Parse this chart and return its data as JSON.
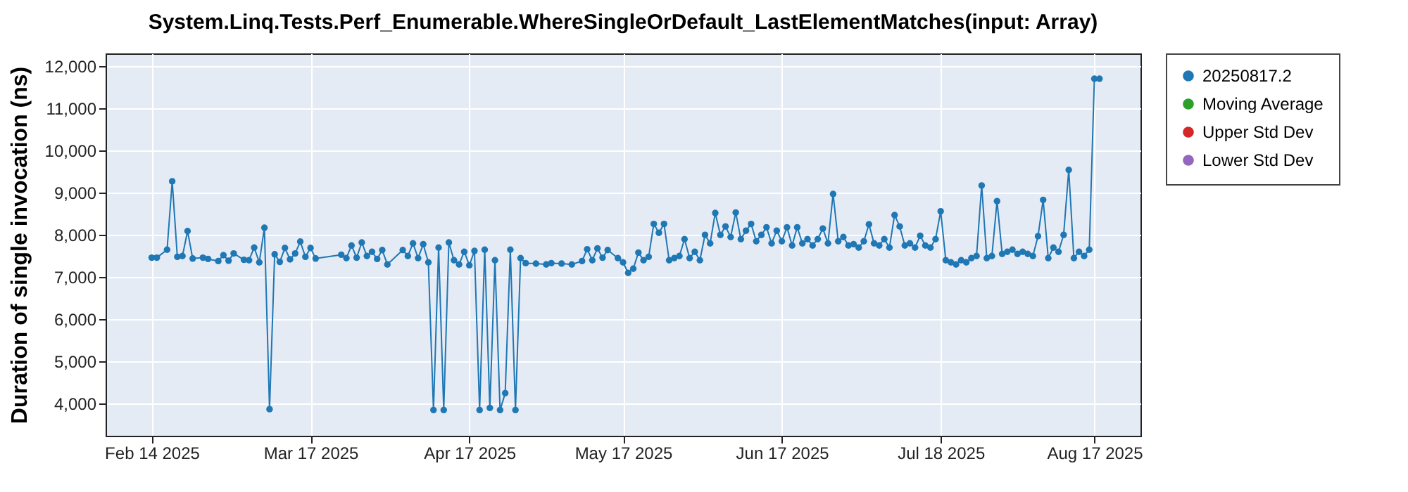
{
  "chart_data": {
    "type": "line",
    "title": "System.Linq.Tests.Perf_Enumerable.WhereSingleOrDefault_LastElementMatches(input: Array)",
    "ylabel": "Duration of single invocation (ns)",
    "xlim": [
      "2025-02-05",
      "2025-08-26"
    ],
    "xticks": [
      {
        "value": "2025-02-14",
        "label": "Feb 14 2025"
      },
      {
        "value": "2025-03-17",
        "label": "Mar 17 2025"
      },
      {
        "value": "2025-04-17",
        "label": "Apr 17 2025"
      },
      {
        "value": "2025-05-17",
        "label": "May 17 2025"
      },
      {
        "value": "2025-06-17",
        "label": "Jun 17 2025"
      },
      {
        "value": "2025-07-18",
        "label": "Jul 18 2025"
      },
      {
        "value": "2025-08-17",
        "label": "Aug 17 2025"
      }
    ],
    "ylim": [
      3240,
      12300
    ],
    "yticks": [
      {
        "value": 4000,
        "label": "4,000"
      },
      {
        "value": 5000,
        "label": "5,000"
      },
      {
        "value": 6000,
        "label": "6,000"
      },
      {
        "value": 7000,
        "label": "7,000"
      },
      {
        "value": 8000,
        "label": "8,000"
      },
      {
        "value": 9000,
        "label": "9,000"
      },
      {
        "value": 10000,
        "label": "10,000"
      },
      {
        "value": 11000,
        "label": "11,000"
      },
      {
        "value": 12000,
        "label": "12,000"
      }
    ],
    "grid": true,
    "legend": "right",
    "marker": "circle",
    "line_style": "solid",
    "x": [
      "2025-02-14",
      "2025-02-15",
      "2025-02-17",
      "2025-02-18",
      "2025-02-19",
      "2025-02-20",
      "2025-02-21",
      "2025-02-22",
      "2025-02-24",
      "2025-02-25",
      "2025-02-27",
      "2025-02-28",
      "2025-03-01",
      "2025-03-02",
      "2025-03-04",
      "2025-03-05",
      "2025-03-06",
      "2025-03-07",
      "2025-03-08",
      "2025-03-09",
      "2025-03-10",
      "2025-03-11",
      "2025-03-12",
      "2025-03-13",
      "2025-03-14",
      "2025-03-15",
      "2025-03-16",
      "2025-03-17",
      "2025-03-18",
      "2025-03-23",
      "2025-03-24",
      "2025-03-25",
      "2025-03-26",
      "2025-03-27",
      "2025-03-28",
      "2025-03-29",
      "2025-03-30",
      "2025-03-31",
      "2025-04-01",
      "2025-04-04",
      "2025-04-05",
      "2025-04-06",
      "2025-04-07",
      "2025-04-08",
      "2025-04-09",
      "2025-04-10",
      "2025-04-11",
      "2025-04-12",
      "2025-04-13",
      "2025-04-14",
      "2025-04-15",
      "2025-04-16",
      "2025-04-17",
      "2025-04-18",
      "2025-04-19",
      "2025-04-20",
      "2025-04-21",
      "2025-04-22",
      "2025-04-23",
      "2025-04-24",
      "2025-04-25",
      "2025-04-26",
      "2025-04-27",
      "2025-04-28",
      "2025-04-30",
      "2025-05-02",
      "2025-05-03",
      "2025-05-05",
      "2025-05-07",
      "2025-05-09",
      "2025-05-10",
      "2025-05-11",
      "2025-05-12",
      "2025-05-13",
      "2025-05-14",
      "2025-05-16",
      "2025-05-17",
      "2025-05-18",
      "2025-05-19",
      "2025-05-20",
      "2025-05-21",
      "2025-05-22",
      "2025-05-23",
      "2025-05-24",
      "2025-05-25",
      "2025-05-26",
      "2025-05-27",
      "2025-05-28",
      "2025-05-29",
      "2025-05-30",
      "2025-05-31",
      "2025-06-01",
      "2025-06-02",
      "2025-06-03",
      "2025-06-04",
      "2025-06-05",
      "2025-06-06",
      "2025-06-07",
      "2025-06-08",
      "2025-06-09",
      "2025-06-10",
      "2025-06-11",
      "2025-06-12",
      "2025-06-13",
      "2025-06-14",
      "2025-06-15",
      "2025-06-16",
      "2025-06-17",
      "2025-06-18",
      "2025-06-19",
      "2025-06-20",
      "2025-06-21",
      "2025-06-22",
      "2025-06-23",
      "2025-06-24",
      "2025-06-25",
      "2025-06-26",
      "2025-06-27",
      "2025-06-28",
      "2025-06-29",
      "2025-06-30",
      "2025-07-01",
      "2025-07-02",
      "2025-07-03",
      "2025-07-04",
      "2025-07-05",
      "2025-07-06",
      "2025-07-07",
      "2025-07-08",
      "2025-07-09",
      "2025-07-10",
      "2025-07-11",
      "2025-07-12",
      "2025-07-13",
      "2025-07-14",
      "2025-07-15",
      "2025-07-16",
      "2025-07-17",
      "2025-07-18",
      "2025-07-19",
      "2025-07-20",
      "2025-07-21",
      "2025-07-22",
      "2025-07-23",
      "2025-07-24",
      "2025-07-25",
      "2025-07-26",
      "2025-07-27",
      "2025-07-28",
      "2025-07-29",
      "2025-07-30",
      "2025-07-31",
      "2025-08-01",
      "2025-08-02",
      "2025-08-03",
      "2025-08-04",
      "2025-08-05",
      "2025-08-06",
      "2025-08-07",
      "2025-08-08",
      "2025-08-09",
      "2025-08-10",
      "2025-08-11",
      "2025-08-12",
      "2025-08-13",
      "2025-08-14",
      "2025-08-15",
      "2025-08-16",
      "2025-08-17",
      "2025-08-18"
    ],
    "series": [
      {
        "name": "20250817.2",
        "color": "#1f77b4",
        "values": [
          7460,
          7460,
          7650,
          9270,
          7480,
          7500,
          8090,
          7440,
          7460,
          7430,
          7380,
          7520,
          7390,
          7560,
          7410,
          7400,
          7700,
          7350,
          8170,
          3870,
          7540,
          7360,
          7690,
          7420,
          7560,
          7840,
          7480,
          7690,
          7440,
          7530,
          7450,
          7750,
          7460,
          7820,
          7500,
          7600,
          7430,
          7640,
          7300,
          7640,
          7500,
          7800,
          7450,
          7780,
          7350,
          3850,
          7700,
          3850,
          7820,
          7400,
          7300,
          7600,
          7280,
          7620,
          3850,
          7650,
          3900,
          7400,
          3850,
          4250,
          7650,
          3850,
          7450,
          7330,
          7320,
          7300,
          7330,
          7320,
          7300,
          7380,
          7660,
          7400,
          7680,
          7460,
          7640,
          7450,
          7350,
          7100,
          7200,
          7580,
          7400,
          7480,
          8260,
          8050,
          8260,
          7400,
          7450,
          7500,
          7900,
          7450,
          7600,
          7400,
          8000,
          7800,
          8520,
          8000,
          8200,
          7950,
          8530,
          7900,
          8100,
          8260,
          7850,
          8000,
          8180,
          7800,
          8100,
          7850,
          8180,
          7750,
          8180,
          7800,
          7900,
          7750,
          7900,
          8150,
          7800,
          8970,
          7850,
          7950,
          7750,
          7780,
          7700,
          7850,
          8250,
          7800,
          7750,
          7900,
          7700,
          8470,
          8200,
          7750,
          7800,
          7700,
          7980,
          7750,
          7700,
          7900,
          8560,
          7400,
          7350,
          7300,
          7400,
          7350,
          7450,
          7500,
          9170,
          7450,
          7500,
          8800,
          7550,
          7600,
          7650,
          7550,
          7600,
          7550,
          7500,
          7970,
          8830,
          7450,
          7700,
          7600,
          8000,
          9540,
          7450,
          7600,
          7500,
          7650,
          11700,
          11700
        ]
      },
      {
        "name": "Moving Average",
        "color": "#2ca02c",
        "values": [
          null,
          null,
          null,
          null,
          null,
          null,
          null,
          null,
          null,
          null,
          null,
          null,
          null,
          null,
          null,
          null,
          null,
          null,
          null,
          null,
          null,
          null,
          null,
          null,
          null,
          null,
          null,
          null,
          null,
          null,
          null,
          null,
          null,
          null,
          null,
          null,
          null,
          null,
          null,
          null,
          null,
          null,
          null,
          null,
          null,
          null,
          null,
          null,
          null,
          null,
          null,
          null,
          null,
          null,
          null,
          null,
          null,
          null,
          null,
          null,
          null,
          null,
          null,
          null,
          null,
          null,
          null,
          null,
          null,
          null,
          null,
          null,
          null,
          null,
          null,
          null,
          null,
          null,
          null,
          null,
          null,
          null,
          null,
          null,
          null,
          null,
          null,
          null,
          null,
          null,
          null,
          null,
          null,
          null,
          null,
          null,
          null,
          null,
          null,
          null,
          null,
          null,
          null,
          null,
          null,
          null,
          null,
          null,
          null,
          null,
          null,
          null,
          null,
          null,
          null,
          null,
          null,
          null,
          null,
          null,
          null,
          null,
          null,
          null,
          null,
          null,
          null,
          null,
          null,
          null,
          null,
          null,
          null,
          null,
          null,
          null,
          null,
          null,
          null,
          null,
          null,
          null,
          null,
          null,
          null,
          null,
          null,
          null,
          null,
          null,
          null,
          null,
          null,
          null,
          null,
          null,
          null,
          null,
          null,
          null,
          null,
          null,
          null,
          null,
          null,
          null,
          null,
          null,
          null,
          null
        ]
      },
      {
        "name": "Upper Std Dev",
        "color": "#d62728",
        "values": [
          null,
          null,
          null,
          null,
          null,
          null,
          null,
          null,
          null,
          null,
          null,
          null,
          null,
          null,
          null,
          null,
          null,
          null,
          null,
          null,
          null,
          null,
          null,
          null,
          null,
          null,
          null,
          null,
          null,
          null,
          null,
          null,
          null,
          null,
          null,
          null,
          null,
          null,
          null,
          null,
          null,
          null,
          null,
          null,
          null,
          null,
          null,
          null,
          null,
          null,
          null,
          null,
          null,
          null,
          null,
          null,
          null,
          null,
          null,
          null,
          null,
          null,
          null,
          null,
          null,
          null,
          null,
          null,
          null,
          null,
          null,
          null,
          null,
          null,
          null,
          null,
          null,
          null,
          null,
          null,
          null,
          null,
          null,
          null,
          null,
          null,
          null,
          null,
          null,
          null,
          null,
          null,
          null,
          null,
          null,
          null,
          null,
          null,
          null,
          null,
          null,
          null,
          null,
          null,
          null,
          null,
          null,
          null,
          null,
          null,
          null,
          null,
          null,
          null,
          null,
          null,
          null,
          null,
          null,
          null,
          null,
          null,
          null,
          null,
          null,
          null,
          null,
          null,
          null,
          null,
          null,
          null,
          null,
          null,
          null,
          null,
          null,
          null,
          null,
          null,
          null,
          null,
          null,
          null,
          null,
          null,
          null,
          null,
          null,
          null,
          null,
          null,
          null,
          null,
          null,
          null,
          null,
          null,
          null,
          null,
          null,
          null,
          null,
          null,
          null,
          null,
          null,
          null,
          null,
          null
        ]
      },
      {
        "name": "Lower Std Dev",
        "color": "#9467bd",
        "values": [
          null,
          null,
          null,
          null,
          null,
          null,
          null,
          null,
          null,
          null,
          null,
          null,
          null,
          null,
          null,
          null,
          null,
          null,
          null,
          null,
          null,
          null,
          null,
          null,
          null,
          null,
          null,
          null,
          null,
          null,
          null,
          null,
          null,
          null,
          null,
          null,
          null,
          null,
          null,
          null,
          null,
          null,
          null,
          null,
          null,
          null,
          null,
          null,
          null,
          null,
          null,
          null,
          null,
          null,
          null,
          null,
          null,
          null,
          null,
          null,
          null,
          null,
          null,
          null,
          null,
          null,
          null,
          null,
          null,
          null,
          null,
          null,
          null,
          null,
          null,
          null,
          null,
          null,
          null,
          null,
          null,
          null,
          null,
          null,
          null,
          null,
          null,
          null,
          null,
          null,
          null,
          null,
          null,
          null,
          null,
          null,
          null,
          null,
          null,
          null,
          null,
          null,
          null,
          null,
          null,
          null,
          null,
          null,
          null,
          null,
          null,
          null,
          null,
          null,
          null,
          null,
          null,
          null,
          null,
          null,
          null,
          null,
          null,
          null,
          null,
          null,
          null,
          null,
          null,
          null,
          null,
          null,
          null,
          null,
          null,
          null,
          null,
          null,
          null,
          null,
          null,
          null,
          null,
          null,
          null,
          null,
          null,
          null,
          null,
          null,
          null,
          null,
          null,
          null,
          null,
          null,
          null,
          null,
          null,
          null,
          null,
          null,
          null,
          null,
          null,
          null,
          null,
          null,
          null,
          null
        ]
      }
    ]
  }
}
